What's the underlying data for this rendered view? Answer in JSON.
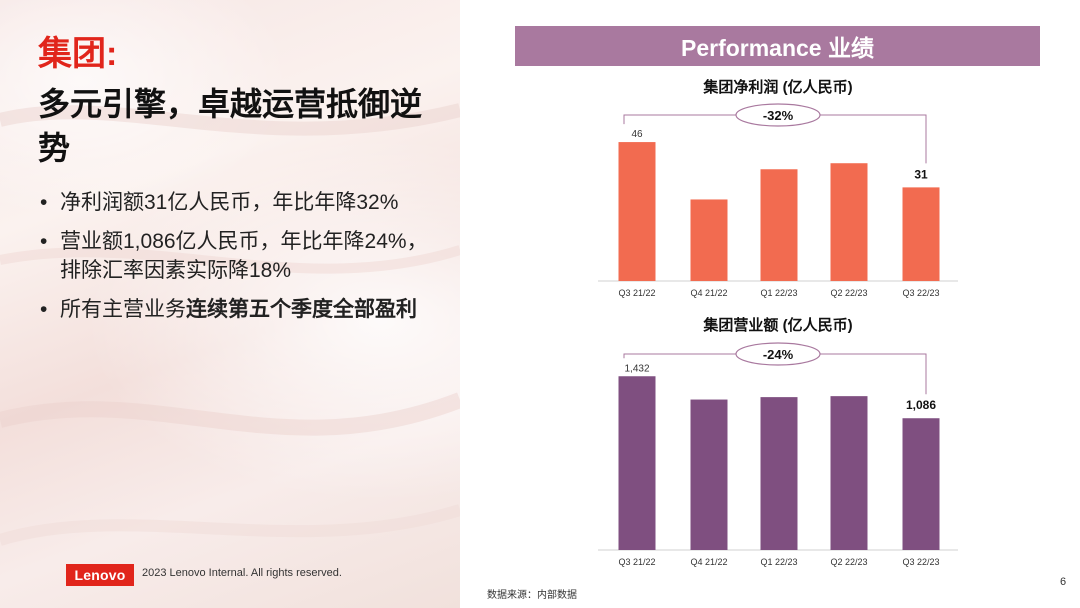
{
  "slide": {
    "title_red": "集团:",
    "title_black": "多元引擎，卓越运营抵御逆势",
    "bullets": [
      {
        "plain": "净利润额31亿人民币，年比年降32%",
        "bold": ""
      },
      {
        "plain": "营业额1,086亿人民币，年比年降24%，排除汇率因素实际降18%",
        "bold": ""
      },
      {
        "plain": "所有主营业务",
        "bold": "连续第五个季度全部盈利"
      }
    ],
    "banner": "Performance 业绩",
    "footer": {
      "logo": "Lenovo",
      "copyright": "2023 Lenovo Internal. All rights reserved.",
      "page_number": "6",
      "source": "数据来源：内部数据"
    }
  },
  "chart_data": [
    {
      "type": "bar",
      "title": "集团净利润 (亿人民币)",
      "categories": [
        "Q3 21/22",
        "Q4 21/22",
        "Q1 22/23",
        "Q2 22/23",
        "Q3 22/23"
      ],
      "values": [
        46,
        27,
        37,
        39,
        31
      ],
      "data_labels": {
        "first": "46",
        "last": "31"
      },
      "change_label": "-32%",
      "color": "#f26b50",
      "ylim": [
        0,
        50
      ]
    },
    {
      "type": "bar",
      "title": "集团营业额 (亿人民币)",
      "categories": [
        "Q3 21/22",
        "Q4 21/22",
        "Q1 22/23",
        "Q2 22/23",
        "Q3 22/23"
      ],
      "values": [
        1432,
        1240,
        1260,
        1268,
        1086
      ],
      "data_labels": {
        "first": "1,432",
        "last": "1,086"
      },
      "change_label": "-24%",
      "color": "#7f4f80",
      "ylim": [
        0,
        1500
      ]
    }
  ]
}
